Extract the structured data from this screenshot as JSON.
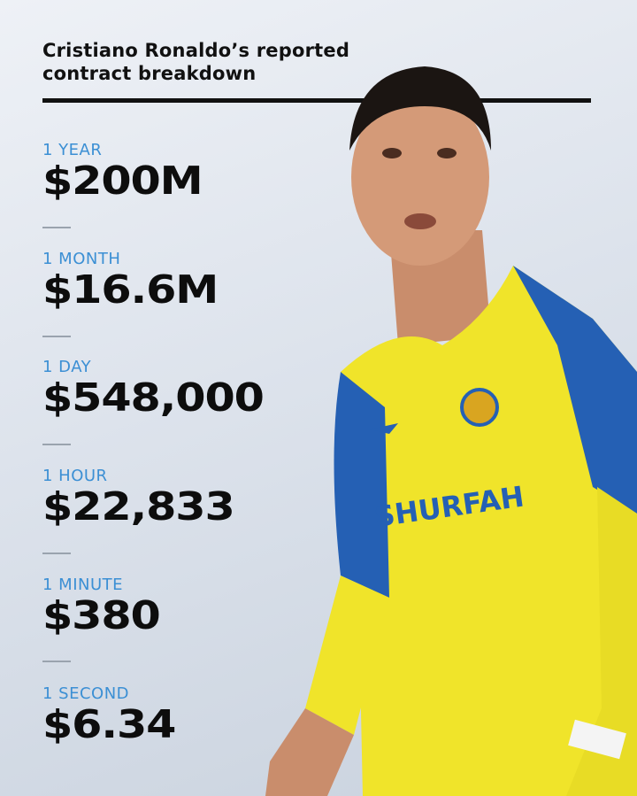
{
  "title": "Cristiano Ronaldo’s reported contract breakdown",
  "title_line1": "Cristiano Ronaldo’s reported",
  "title_line2": "contract breakdown",
  "stats": [
    {
      "label": "1 YEAR",
      "value": "$200M"
    },
    {
      "label": "1 MONTH",
      "value": "$16.6M"
    },
    {
      "label": "1 DAY",
      "value": "$548,000"
    },
    {
      "label": "1 HOUR",
      "value": "$22,833"
    },
    {
      "label": "1 MINUTE",
      "value": "$380"
    },
    {
      "label": "1 SECOND",
      "value": "$6.34"
    }
  ],
  "jersey_sponsor": "SHURFAH",
  "colors": {
    "label": "#3b8fd4",
    "value": "#0d0d0d",
    "jersey_yellow": "#f2e62a",
    "jersey_blue": "#2560b4"
  }
}
